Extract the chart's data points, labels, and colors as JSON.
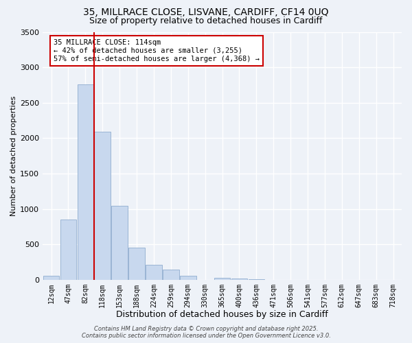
{
  "title1": "35, MILLRACE CLOSE, LISVANE, CARDIFF, CF14 0UQ",
  "title2": "Size of property relative to detached houses in Cardiff",
  "xlabel": "Distribution of detached houses by size in Cardiff",
  "ylabel": "Number of detached properties",
  "bar_color": "#c8d8ee",
  "bar_edge_color": "#9ab4d4",
  "bg_color": "#eef2f8",
  "grid_color": "#ffffff",
  "categories": [
    "12sqm",
    "47sqm",
    "82sqm",
    "118sqm",
    "153sqm",
    "188sqm",
    "224sqm",
    "259sqm",
    "294sqm",
    "330sqm",
    "365sqm",
    "400sqm",
    "436sqm",
    "471sqm",
    "506sqm",
    "541sqm",
    "577sqm",
    "612sqm",
    "647sqm",
    "683sqm",
    "718sqm"
  ],
  "values": [
    60,
    850,
    2760,
    2090,
    1040,
    450,
    210,
    145,
    60,
    0,
    30,
    15,
    5,
    0,
    0,
    0,
    0,
    0,
    0,
    0,
    0
  ],
  "ylim": [
    0,
    3500
  ],
  "yticks": [
    0,
    500,
    1000,
    1500,
    2000,
    2500,
    3000,
    3500
  ],
  "vline_color": "#cc0000",
  "annotation_title": "35 MILLRACE CLOSE: 114sqm",
  "annotation_line1": "← 42% of detached houses are smaller (3,255)",
  "annotation_line2": "57% of semi-detached houses are larger (4,368) →",
  "footer1": "Contains HM Land Registry data © Crown copyright and database right 2025.",
  "footer2": "Contains public sector information licensed under the Open Government Licence v3.0."
}
